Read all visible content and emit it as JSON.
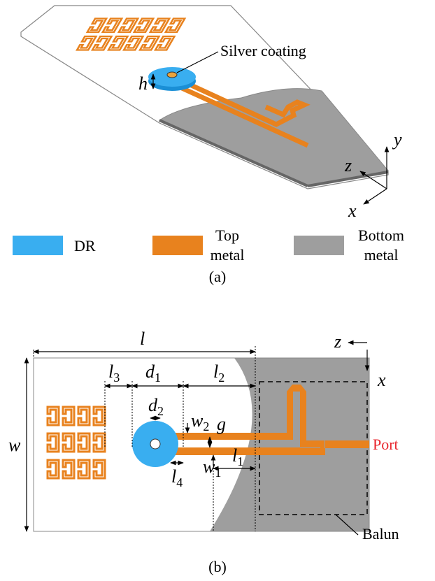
{
  "figure_a": {
    "silver_coating": "Silver coating",
    "h": "h",
    "axis_y": "y",
    "axis_z": "z",
    "axis_x": "x",
    "legend": [
      {
        "lines": [
          "DR"
        ]
      },
      {
        "lines": [
          "Top",
          "metal"
        ]
      },
      {
        "lines": [
          "Bottom",
          "metal"
        ]
      }
    ],
    "caption": "(a)"
  },
  "figure_b": {
    "axis_z": "z",
    "axis_x": "x",
    "port": "Port",
    "balun": "Balun",
    "caption": "(b)",
    "dimensions": {
      "l": {
        "main": "l",
        "sub": ""
      },
      "l3": {
        "main": "l",
        "sub": "3"
      },
      "d1": {
        "main": "d",
        "sub": "1"
      },
      "l2": {
        "main": "l",
        "sub": "2"
      },
      "d2": {
        "main": "d",
        "sub": "2"
      },
      "w2": {
        "main": "w",
        "sub": "2"
      },
      "g": {
        "main": "g",
        "sub": ""
      },
      "w": {
        "main": "w",
        "sub": ""
      },
      "w1": {
        "main": "w",
        "sub": "1"
      },
      "l4": {
        "main": "l",
        "sub": "4"
      },
      "l1": {
        "main": "l",
        "sub": "1"
      }
    }
  }
}
